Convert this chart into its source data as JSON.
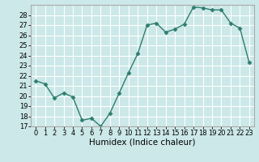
{
  "x": [
    0,
    1,
    2,
    3,
    4,
    5,
    6,
    7,
    8,
    9,
    10,
    11,
    12,
    13,
    14,
    15,
    16,
    17,
    18,
    19,
    20,
    21,
    22,
    23
  ],
  "y": [
    21.5,
    21.2,
    19.8,
    20.3,
    19.9,
    17.6,
    17.8,
    17.0,
    18.3,
    20.3,
    22.3,
    24.2,
    27.0,
    27.2,
    26.3,
    26.6,
    27.1,
    28.8,
    28.7,
    28.5,
    28.5,
    27.2,
    26.7,
    23.3
  ],
  "line_color": "#2e7d6e",
  "marker": "D",
  "marker_size": 2.5,
  "bg_color": "#cce8e8",
  "grid_color": "#ffffff",
  "xlabel": "Humidex (Indice chaleur)",
  "ylim": [
    17,
    29
  ],
  "xlim": [
    -0.5,
    23.5
  ],
  "yticks": [
    17,
    18,
    19,
    20,
    21,
    22,
    23,
    24,
    25,
    26,
    27,
    28
  ],
  "xticks": [
    0,
    1,
    2,
    3,
    4,
    5,
    6,
    7,
    8,
    9,
    10,
    11,
    12,
    13,
    14,
    15,
    16,
    17,
    18,
    19,
    20,
    21,
    22,
    23
  ],
  "tick_labelsize": 6,
  "xlabel_fontsize": 7.5,
  "linewidth": 1.0,
  "spine_color": "#aaaaaa"
}
